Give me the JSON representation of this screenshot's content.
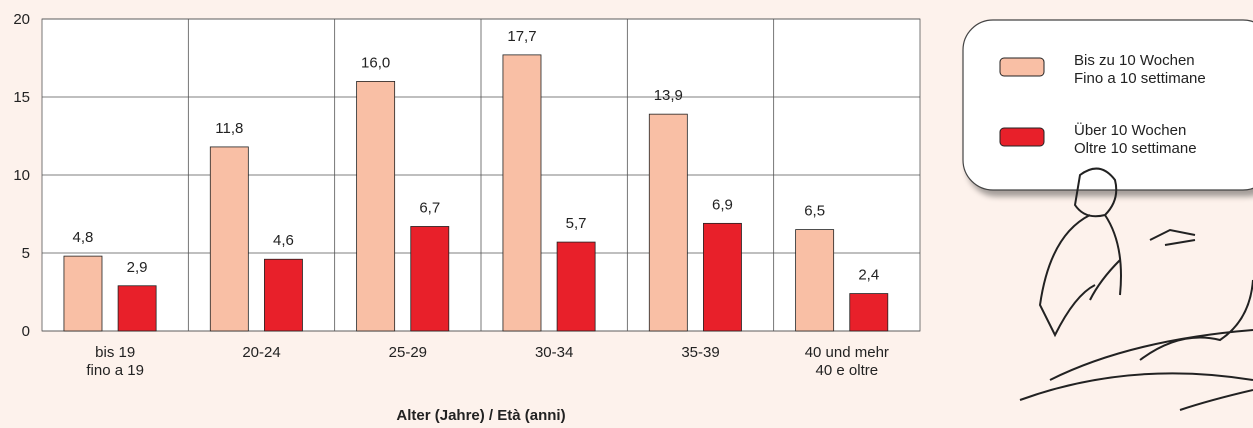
{
  "chart_data": {
    "type": "bar",
    "x_label": "Alter (Jahre) / Età (anni)",
    "categories": [
      "bis 19\nfino a 19",
      "20-24",
      "25-29",
      "30-34",
      "35-39",
      "40 und mehr\n40 e oltre"
    ],
    "series": [
      {
        "name": "Bis zu 10 Wochen\nFino a 10 settimane",
        "color": "#f9bfa5",
        "values": [
          4.8,
          11.8,
          16.0,
          17.7,
          13.9,
          6.5
        ],
        "value_labels": [
          "4,8",
          "11,8",
          "16,0",
          "17,7",
          "13,9",
          "6,5"
        ]
      },
      {
        "name": "Über 10 Wochen\nOltre 10 settimane",
        "color": "#e8202a",
        "values": [
          2.9,
          4.6,
          6.7,
          5.7,
          6.9,
          2.4
        ],
        "value_labels": [
          "2,9",
          "4,6",
          "6,7",
          "5,7",
          "6,9",
          "2,4"
        ]
      }
    ],
    "ylim": [
      0,
      20
    ],
    "yticks": [
      0,
      5,
      10,
      15,
      20
    ],
    "grid": true
  }
}
